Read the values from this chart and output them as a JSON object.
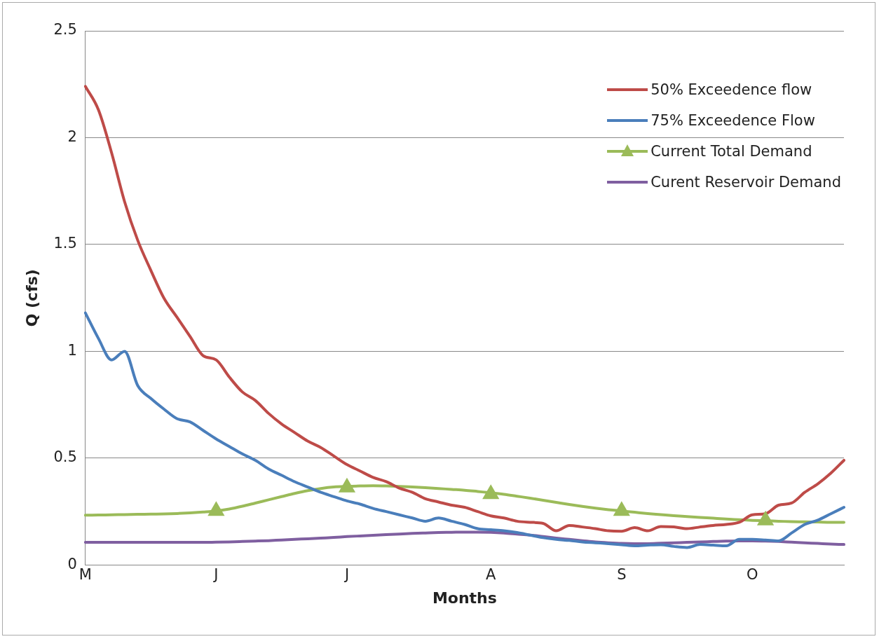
{
  "chart_data": {
    "type": "line",
    "xlabel": "Months",
    "ylabel": "Q (cfs)",
    "categories": [
      "M",
      null,
      null,
      null,
      null,
      null,
      null,
      null,
      null,
      null,
      "J",
      null,
      null,
      null,
      null,
      null,
      null,
      null,
      null,
      null,
      "J",
      null,
      null,
      null,
      null,
      null,
      null,
      null,
      null,
      null,
      null,
      "A",
      null,
      null,
      null,
      null,
      null,
      null,
      null,
      null,
      null,
      "S",
      null,
      null,
      null,
      null,
      null,
      null,
      null,
      null,
      null,
      "O",
      null,
      null,
      null,
      null,
      null,
      null,
      null
    ],
    "ylim": [
      0,
      2.5
    ],
    "yticks": [
      0,
      0.5,
      1,
      1.5,
      2,
      2.5
    ],
    "grid": "y",
    "legend": "top right",
    "line_style": "solid",
    "series": [
      {
        "name": "50% Exceedence flow",
        "color": "#be4b48",
        "marker": "none",
        "values": [
          2.24,
          2.13,
          1.93,
          1.7,
          1.52,
          1.38,
          1.25,
          1.16,
          1.07,
          0.98,
          0.96,
          0.88,
          0.81,
          0.77,
          0.71,
          0.66,
          0.62,
          0.58,
          0.55,
          0.51,
          0.47,
          0.44,
          0.41,
          0.39,
          0.36,
          0.34,
          0.31,
          0.295,
          0.28,
          0.27,
          0.25,
          0.23,
          0.22,
          0.205,
          0.2,
          0.195,
          0.16,
          0.185,
          0.178,
          0.17,
          0.16,
          0.158,
          0.175,
          0.16,
          0.18,
          0.178,
          0.17,
          0.178,
          0.185,
          0.19,
          0.2,
          0.235,
          0.24,
          0.28,
          0.29,
          0.34,
          0.38,
          0.43,
          0.49
        ]
      },
      {
        "name": "75% Exceedence Flow",
        "color": "#4a7ebb",
        "marker": "none",
        "values": [
          1.18,
          1.06,
          0.96,
          1.0,
          0.84,
          0.78,
          0.73,
          0.685,
          0.67,
          0.63,
          0.59,
          0.555,
          0.52,
          0.49,
          0.45,
          0.42,
          0.39,
          0.365,
          0.34,
          0.32,
          0.3,
          0.285,
          0.265,
          0.25,
          0.235,
          0.22,
          0.205,
          0.22,
          0.205,
          0.19,
          0.17,
          0.165,
          0.16,
          0.152,
          0.14,
          0.128,
          0.12,
          0.115,
          0.108,
          0.104,
          0.1,
          0.095,
          0.09,
          0.093,
          0.095,
          0.087,
          0.082,
          0.096,
          0.093,
          0.09,
          0.12,
          0.12,
          0.117,
          0.113,
          0.15,
          0.19,
          0.21,
          0.24,
          0.27
        ]
      },
      {
        "name": "Current Total Demand",
        "color": "#9bbb59",
        "marker": "none",
        "values": [
          0.233,
          0.234,
          0.235,
          0.236,
          0.237,
          0.238,
          0.239,
          0.241,
          0.244,
          0.248,
          0.253,
          0.262,
          0.275,
          0.29,
          0.305,
          0.32,
          0.335,
          0.348,
          0.358,
          0.365,
          0.368,
          0.37,
          0.371,
          0.37,
          0.368,
          0.365,
          0.362,
          0.358,
          0.354,
          0.35,
          0.344,
          0.338,
          0.331,
          0.322,
          0.313,
          0.303,
          0.293,
          0.283,
          0.274,
          0.266,
          0.259,
          0.253,
          0.247,
          0.241,
          0.236,
          0.231,
          0.227,
          0.223,
          0.219,
          0.215,
          0.212,
          0.209,
          0.207,
          0.205,
          0.203,
          0.202,
          0.201,
          0.2,
          0.2
        ]
      },
      {
        "type": "scatter",
        "color": "#9bbb59",
        "marker": "triangle",
        "values": [
          null,
          null,
          null,
          null,
          null,
          null,
          null,
          null,
          null,
          null,
          0.253,
          null,
          null,
          null,
          null,
          null,
          null,
          null,
          null,
          null,
          0.363,
          null,
          null,
          null,
          null,
          null,
          null,
          null,
          null,
          null,
          null,
          0.332,
          null,
          null,
          null,
          null,
          null,
          null,
          null,
          null,
          null,
          0.253,
          null,
          null,
          null,
          null,
          null,
          null,
          null,
          null,
          null,
          null,
          0.209,
          null,
          null,
          null,
          null,
          null,
          null
        ]
      },
      {
        "name": "Curent Reservoir Demand",
        "color": "#7f5fa0",
        "marker": "none",
        "values": [
          0.106,
          0.106,
          0.106,
          0.106,
          0.106,
          0.106,
          0.106,
          0.106,
          0.106,
          0.106,
          0.107,
          0.108,
          0.11,
          0.112,
          0.114,
          0.117,
          0.12,
          0.123,
          0.126,
          0.129,
          0.133,
          0.136,
          0.139,
          0.142,
          0.145,
          0.148,
          0.15,
          0.152,
          0.153,
          0.154,
          0.154,
          0.153,
          0.15,
          0.145,
          0.14,
          0.133,
          0.126,
          0.12,
          0.114,
          0.108,
          0.104,
          0.101,
          0.1,
          0.1,
          0.102,
          0.104,
          0.106,
          0.108,
          0.11,
          0.112,
          0.113,
          0.113,
          0.112,
          0.11,
          0.107,
          0.104,
          0.101,
          0.098,
          0.096
        ]
      }
    ]
  }
}
